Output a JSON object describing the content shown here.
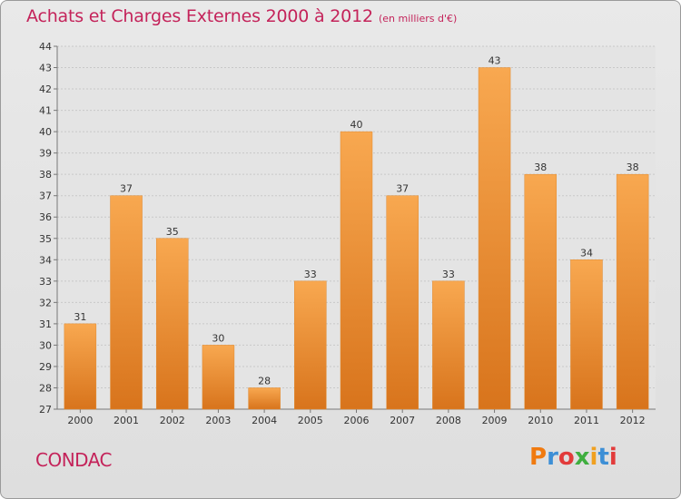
{
  "header": {
    "title": "Achats et Charges Externes 2000 à 2012",
    "subtitle": "(en milliers d'€)"
  },
  "footer": {
    "commune": "CONDAC",
    "logo": "Proxiti",
    "logo_colors": [
      "#f07a10",
      "#3d8fd6",
      "#e23b3b",
      "#3fae3f",
      "#f0a020",
      "#3d8fd6",
      "#e23b3b"
    ]
  },
  "colors": {
    "bar_top": "#f8a850",
    "bar_bottom": "#d8741c",
    "title": "#c4235a"
  },
  "chart_data": {
    "type": "bar",
    "categories": [
      "2000",
      "2001",
      "2002",
      "2003",
      "2004",
      "2005",
      "2006",
      "2007",
      "2008",
      "2009",
      "2010",
      "2011",
      "2012"
    ],
    "values": [
      31,
      37,
      35,
      30,
      28,
      33,
      40,
      37,
      33,
      43,
      38,
      34,
      38
    ],
    "title": "Achats et Charges Externes 2000 à 2012",
    "subtitle": "(en milliers d'€)",
    "ylim": [
      27,
      44
    ],
    "yticks": [
      27,
      28,
      29,
      30,
      31,
      32,
      33,
      34,
      35,
      36,
      37,
      38,
      39,
      40,
      41,
      42,
      43,
      44
    ],
    "grid": true,
    "legend": "none"
  }
}
